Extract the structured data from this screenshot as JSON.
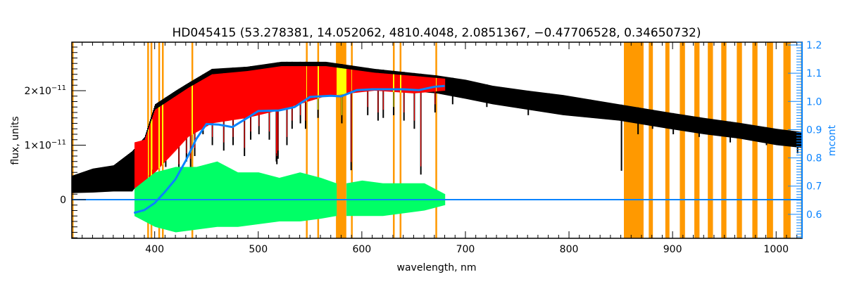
{
  "chart_data": {
    "type": "line",
    "title": "HD045415    (53.278381, 14.052062, 4810.4048, 2.0851367, −0.47706528, 0.34650732)",
    "xlabel": "wavelength, nm",
    "ylabel": "flux, units",
    "y2label": "mcont",
    "xlim": [
      320,
      1025
    ],
    "ylim": [
      -7.1e-12,
      2.89e-11
    ],
    "y2lim": [
      0.515,
      1.21
    ],
    "x_ticks": [
      400,
      500,
      600,
      700,
      800,
      900,
      1000
    ],
    "x_tick_labels": [
      "400",
      "500",
      "600",
      "700",
      "800",
      "900",
      "1000"
    ],
    "y_ticks": [
      0,
      1e-11,
      2e-11
    ],
    "y_tick_labels": [
      {
        "mant": "0",
        "exp": ""
      },
      {
        "mant": "1×10",
        "exp": "−11"
      },
      {
        "mant": "2×10",
        "exp": "−11"
      }
    ],
    "y2_ticks": [
      0.6,
      0.7,
      0.8,
      0.9,
      1.0,
      1.1,
      1.2
    ],
    "y2_tick_labels": [
      "0.6",
      "0.7",
      "0.8",
      "0.9",
      "1.0",
      "1.1",
      "1.2"
    ],
    "grid": false,
    "colors": {
      "observed": "#000000",
      "model": "#ff0000",
      "masked_model": "#ffff00",
      "residual": "#00ff66",
      "continuum": "#0a84ff",
      "mask_band": "#ff9900",
      "axis2": "#0a84ff"
    },
    "mask_bands_nm": [
      [
        320,
        321
      ],
      [
        392.8,
        393.8
      ],
      [
        396,
        397
      ],
      [
        403.5,
        404.5
      ],
      [
        407,
        408
      ],
      [
        435.5,
        436.5
      ],
      [
        546,
        547
      ],
      [
        557,
        558
      ],
      [
        575,
        585
      ],
      [
        589.5,
        590.5
      ],
      [
        630,
        631
      ],
      [
        636.5,
        637.5
      ],
      [
        671,
        672
      ],
      [
        853,
        872
      ],
      [
        877,
        881
      ],
      [
        893,
        897
      ],
      [
        907,
        912
      ],
      [
        921,
        926
      ],
      [
        934,
        939
      ],
      [
        947,
        952
      ],
      [
        962,
        967
      ],
      [
        977,
        982
      ],
      [
        991,
        997
      ],
      [
        1007,
        1014
      ],
      [
        1024,
        1025
      ]
    ],
    "observed": {
      "wavelength": [
        320,
        340,
        360,
        378,
        390,
        400,
        420,
        432,
        455,
        489,
        522,
        565,
        612,
        672,
        700,
        726,
        760,
        794,
        848,
        896,
        930,
        964,
        1000,
        1025
      ],
      "flux_upper": [
        4.4e-12,
        5.7e-12,
        6.3e-12,
        8.9e-12,
        1.15e-11,
        1.75e-11,
        2e-11,
        2.14e-11,
        2.4e-11,
        2.44e-11,
        2.53e-11,
        2.53e-11,
        2.4e-11,
        2.28e-11,
        2.2e-11,
        2.09e-11,
        2e-11,
        1.92e-11,
        1.75e-11,
        1.6e-11,
        1.5e-11,
        1.41e-11,
        1.3e-11,
        1.24e-11
      ],
      "flux_lower": [
        1.2e-12,
        1.3e-12,
        1.5e-12,
        1.5e-12,
        4.5e-12,
        8e-12,
        1e-11,
        1.2e-11,
        1.45e-11,
        1.6e-11,
        1.7e-11,
        1.95e-11,
        2.05e-11,
        1.95e-11,
        1.85e-11,
        1.75e-11,
        1.65e-11,
        1.55e-11,
        1.45e-11,
        1.3e-11,
        1.2e-11,
        1.12e-11,
        1e-11,
        9.5e-12
      ],
      "absorption_lines": [
        [
          393.4,
          3e-12
        ],
        [
          396.8,
          4e-12
        ],
        [
          410,
          6e-12
        ],
        [
          422.7,
          5e-12
        ],
        [
          430,
          7e-12
        ],
        [
          434,
          6e-12
        ],
        [
          438,
          8e-12
        ],
        [
          446,
          1.2e-11
        ],
        [
          455,
          1e-11
        ],
        [
          466,
          9e-12
        ],
        [
          475,
          1e-11
        ],
        [
          486,
          8e-12
        ],
        [
          492,
          1.1e-11
        ],
        [
          500,
          1.2e-11
        ],
        [
          510,
          1.1e-11
        ],
        [
          516.8,
          7e-12
        ],
        [
          517.3,
          6.5e-12
        ],
        [
          518.4,
          7.5e-12
        ],
        [
          527,
          1e-11
        ],
        [
          532,
          1.3e-11
        ],
        [
          540,
          1.4e-11
        ],
        [
          545,
          1.3e-11
        ],
        [
          557,
          1.5e-11
        ],
        [
          580,
          1.4e-11
        ],
        [
          589,
          5.4e-12
        ],
        [
          605,
          1.55e-11
        ],
        [
          615,
          1.45e-11
        ],
        [
          620,
          1.5e-11
        ],
        [
          630,
          1.55e-11
        ],
        [
          640,
          1.45e-11
        ],
        [
          650,
          1.3e-11
        ],
        [
          656.3,
          4.6e-12
        ],
        [
          670,
          1.6e-11
        ],
        [
          687,
          1.75e-11
        ],
        [
          720,
          1.7e-11
        ],
        [
          760,
          1.55e-11
        ],
        [
          780,
          1.6e-11
        ],
        [
          820,
          1.55e-11
        ],
        [
          850,
          5.3e-12
        ],
        [
          866,
          1.2e-11
        ],
        [
          880,
          1.3e-11
        ],
        [
          900,
          1.2e-11
        ],
        [
          925,
          1.15e-11
        ],
        [
          955,
          1.05e-11
        ],
        [
          990,
          1e-11
        ],
        [
          1020,
          8.5e-12
        ]
      ]
    },
    "model": {
      "wavelength": [
        380,
        390,
        400,
        420,
        432,
        455,
        489,
        522,
        565,
        612,
        650,
        680
      ],
      "flux_upper": [
        1.05e-11,
        1.1e-11,
        1.65e-11,
        1.9e-11,
        2.05e-11,
        2.3e-11,
        2.36e-11,
        2.45e-11,
        2.45e-11,
        2.33e-11,
        2.27e-11,
        2.22e-11
      ],
      "flux_lower": [
        1e-12,
        3e-12,
        5e-12,
        9e-12,
        1.15e-11,
        1.4e-11,
        1.5e-11,
        1.65e-11,
        1.9e-11,
        2e-11,
        1.95e-11,
        2e-11
      ]
    },
    "residual": {
      "wavelength": [
        380,
        400,
        420,
        440,
        460,
        480,
        500,
        520,
        540,
        560,
        575,
        585,
        600,
        620,
        640,
        660,
        680
      ],
      "upper": [
        2e-12,
        5e-12,
        6e-12,
        6e-12,
        7e-12,
        5e-12,
        5e-12,
        4e-12,
        5e-12,
        4e-12,
        3e-12,
        3e-12,
        3.5e-12,
        3e-12,
        3e-12,
        3e-12,
        1e-12
      ],
      "lower": [
        -3e-12,
        -5e-12,
        -6e-12,
        -5.5e-12,
        -5e-12,
        -5e-12,
        -4.5e-12,
        -4e-12,
        -4e-12,
        -3.5e-12,
        -3e-12,
        -3e-12,
        -3e-12,
        -3e-12,
        -2.5e-12,
        -2e-12,
        -1e-12
      ],
      "gap_nm": [
        575,
        585
      ]
    },
    "continuum_mcont": {
      "wavelength": [
        380,
        390,
        400,
        410,
        420,
        430,
        440,
        450,
        462,
        475,
        490,
        500,
        520,
        535,
        550,
        570,
        580,
        595,
        610,
        640,
        655,
        670,
        680
      ],
      "mcont": [
        0.605,
        0.615,
        0.64,
        0.68,
        0.724,
        0.79,
        0.866,
        0.92,
        0.918,
        0.909,
        0.943,
        0.966,
        0.968,
        0.98,
        1.016,
        1.02,
        1.018,
        1.04,
        1.043,
        1.043,
        1.04,
        1.052,
        1.055
      ]
    },
    "zero_line_flux": 0
  }
}
